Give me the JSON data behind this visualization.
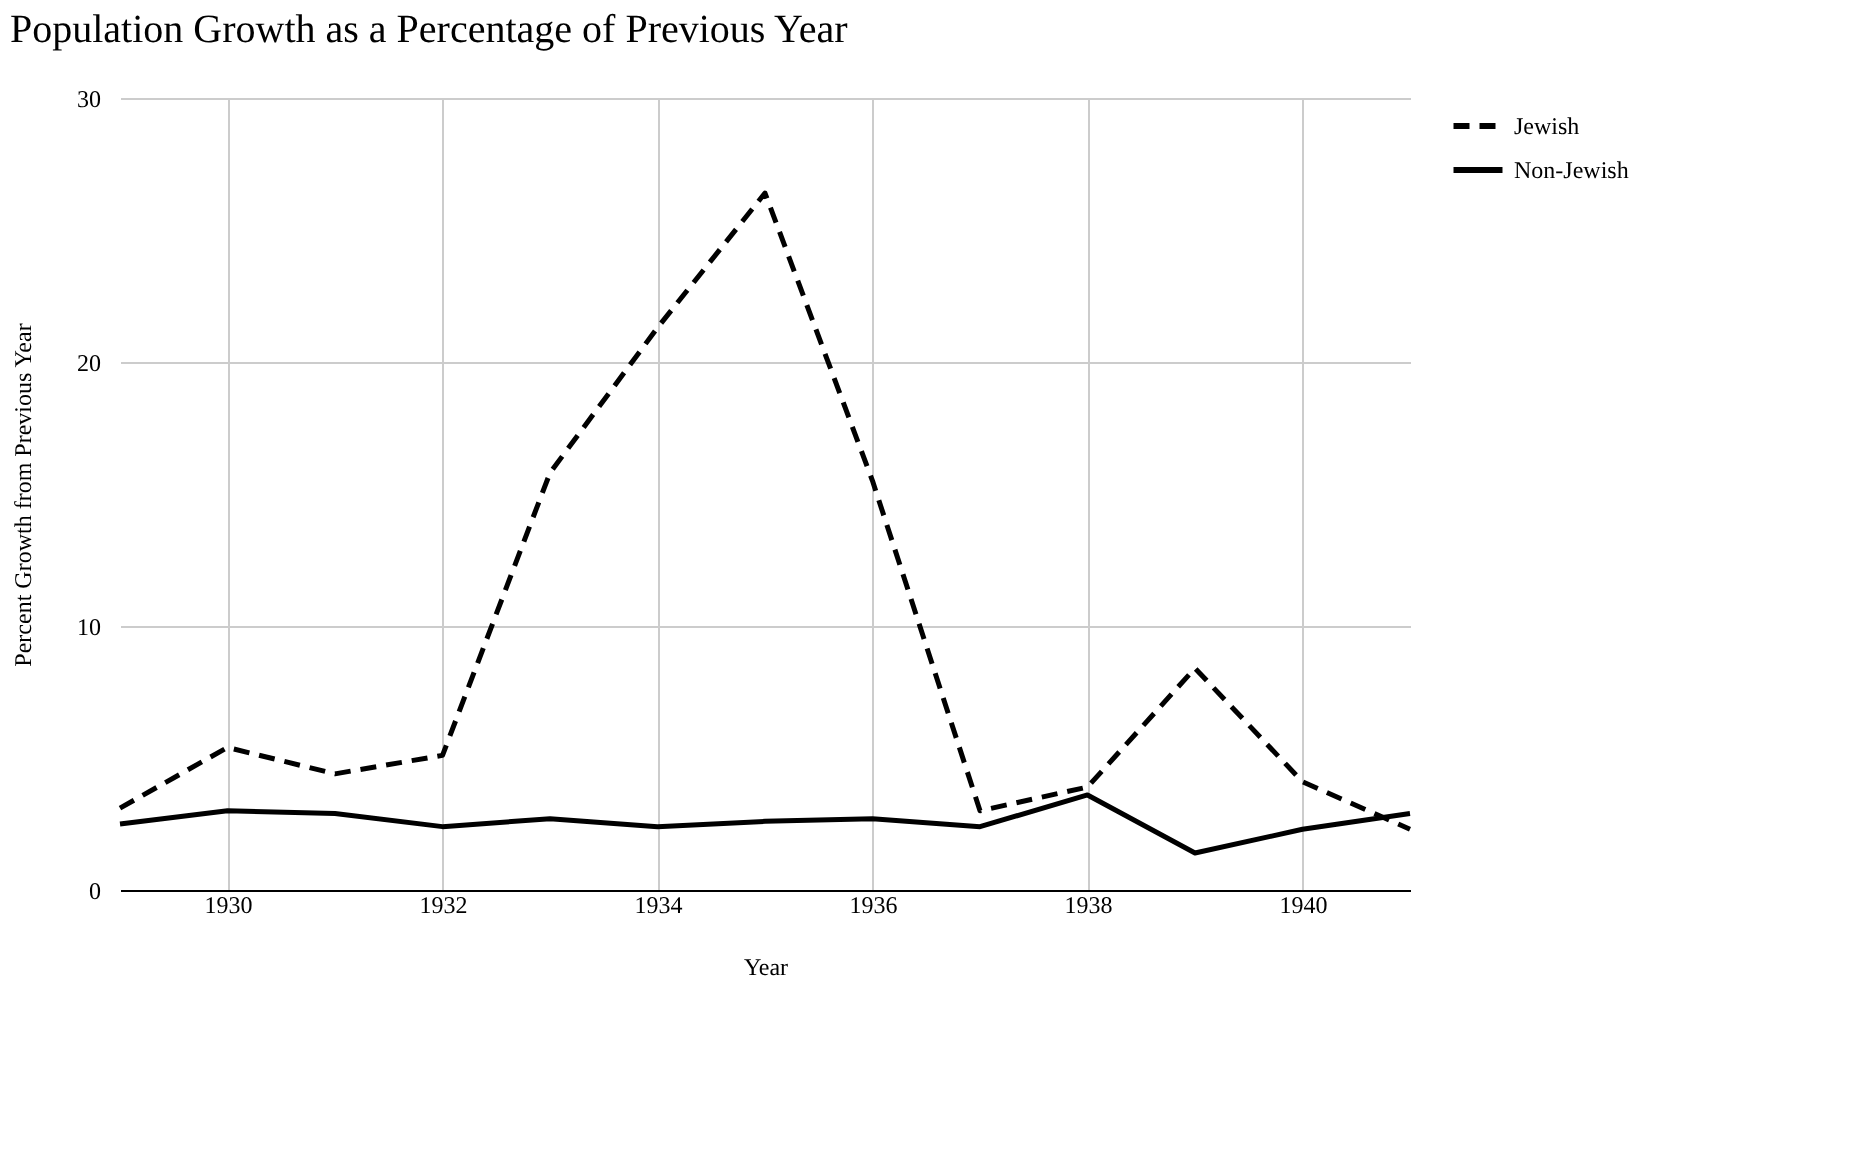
{
  "chart_data": {
    "type": "line",
    "title": "Population Growth as a Percentage of Previous Year",
    "xlabel": "Year",
    "ylabel": "Percent Growth from Previous Year",
    "x": [
      1929,
      1930,
      1931,
      1932,
      1933,
      1934,
      1935,
      1936,
      1937,
      1938,
      1939,
      1940,
      1941
    ],
    "xlim": [
      1929,
      1941
    ],
    "xticks": [
      1930,
      1932,
      1934,
      1936,
      1938,
      1940
    ],
    "ylim": [
      0,
      30
    ],
    "yticks": [
      0,
      10,
      20,
      30
    ],
    "grid": true,
    "legend": "top right",
    "marker": "none",
    "series": [
      {
        "name": "Jewish",
        "color": "#000000",
        "line_style": "dashed",
        "values": [
          3.1,
          5.4,
          4.4,
          5.1,
          15.8,
          21.3,
          26.4,
          15.5,
          3.0,
          3.9,
          8.4,
          4.1,
          2.3
        ]
      },
      {
        "name": "Non-Jewish",
        "color": "#000000",
        "line_style": "solid",
        "values": [
          2.5,
          3.0,
          2.9,
          2.4,
          2.7,
          2.4,
          2.6,
          2.7,
          2.4,
          3.6,
          1.4,
          2.3,
          2.9
        ]
      }
    ]
  }
}
